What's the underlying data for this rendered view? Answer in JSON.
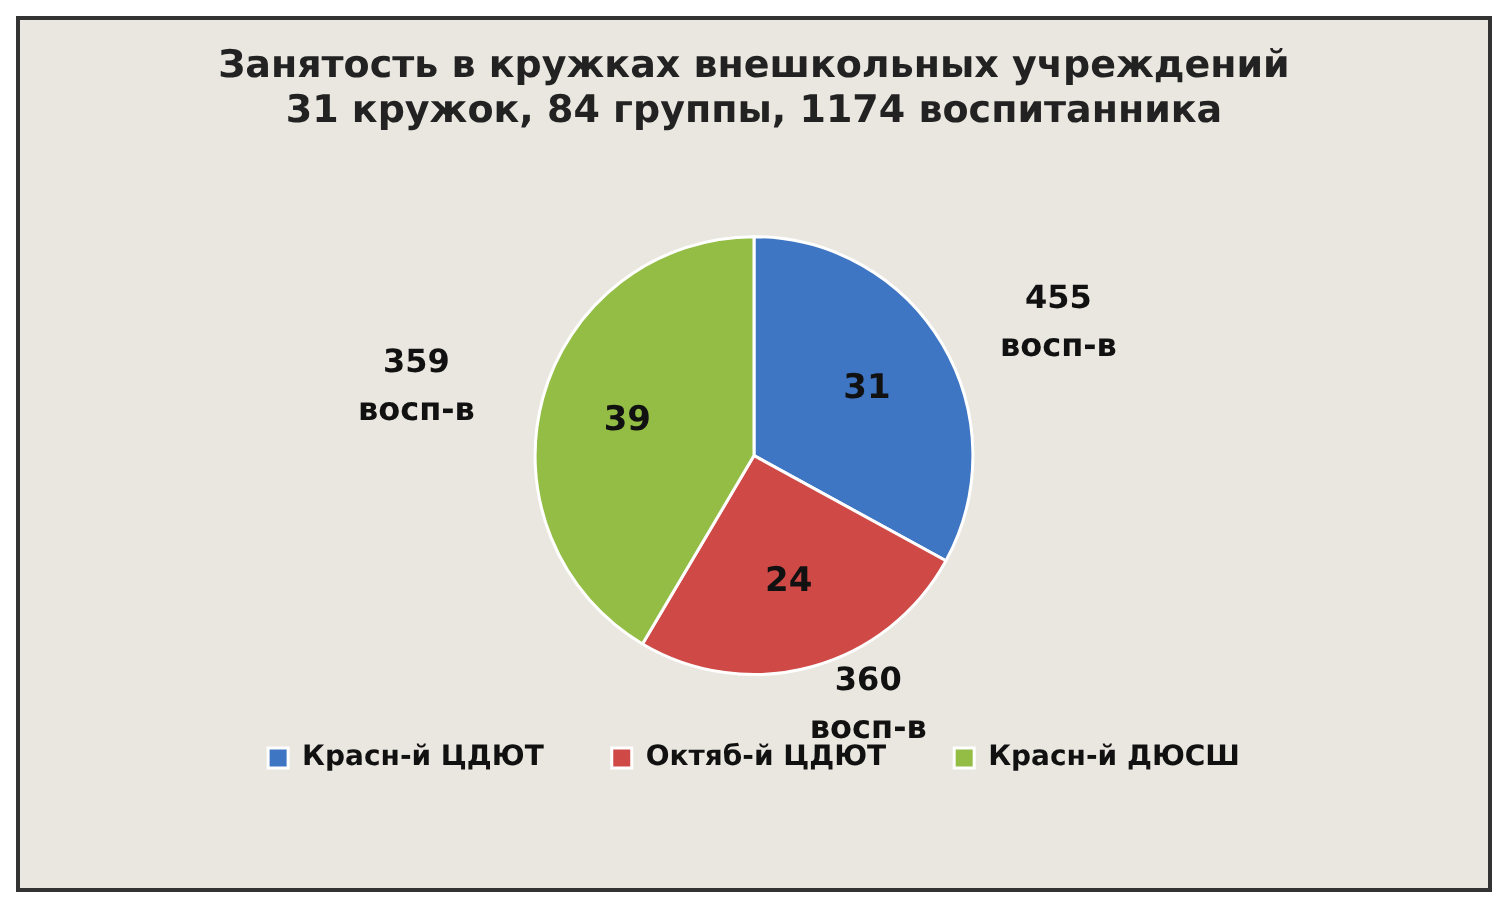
{
  "chart_data": {
    "type": "pie",
    "title": "Занятость в кружках внешкольных учреждений\n31 кружок, 84 группы, 1174 воспитанника",
    "categories": [
      "Красн-й ЦДЮТ",
      "Октяб-й ЦДЮТ",
      "Красн-й ДЮСШ"
    ],
    "values": [
      31,
      24,
      39
    ],
    "colors": [
      "#3f76c3",
      "#cf4a46",
      "#93bd45"
    ],
    "data_labels": true,
    "annotations": [
      "455 восп-в",
      "360 восп-в",
      "359 восп-в"
    ],
    "legend": "bottom"
  }
}
